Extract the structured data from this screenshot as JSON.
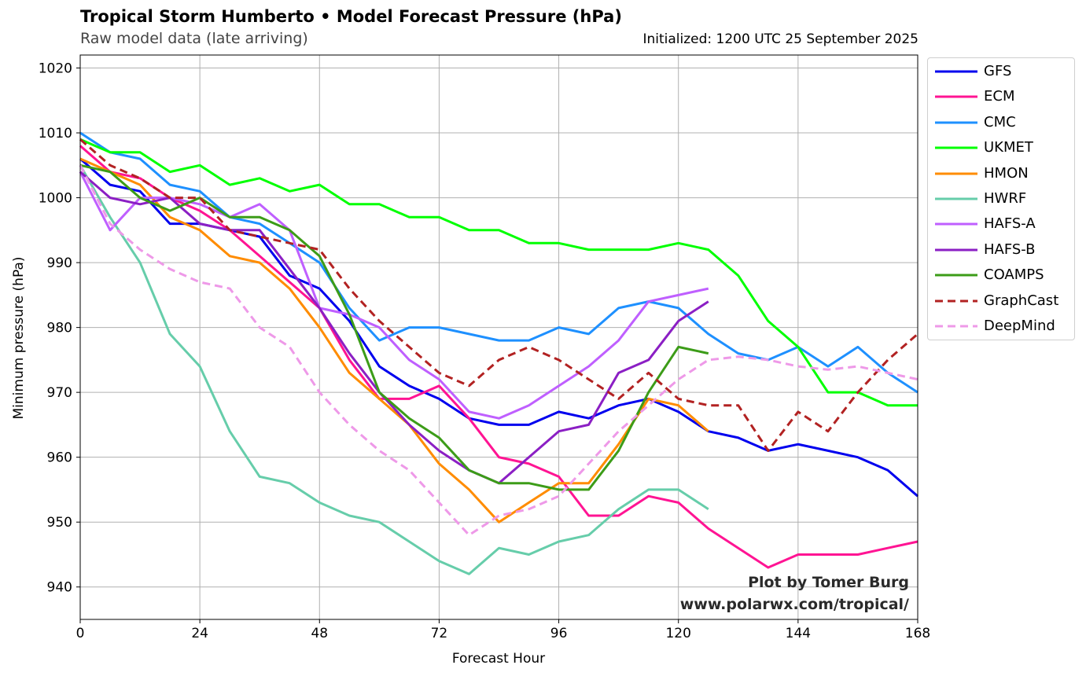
{
  "header": {
    "title": "Tropical Storm Humberto • Model Forecast Pressure (hPa)",
    "subtitle": "Raw model data (late arriving)",
    "initialized": "Initialized: 1200 UTC 25 September 2025"
  },
  "credit": {
    "line1": "Plot by Tomer Burg",
    "line2": "www.polarwx.com/tropical/"
  },
  "chart_data": {
    "type": "line",
    "title": "Tropical Storm Humberto • Model Forecast Pressure (hPa)",
    "xlabel": "Forecast Hour",
    "ylabel": "Minimum pressure (hPa)",
    "xlim": [
      0,
      168
    ],
    "ylim": [
      935,
      1022
    ],
    "xticks": [
      0,
      24,
      48,
      72,
      96,
      120,
      144,
      168
    ],
    "yticks": [
      940,
      950,
      960,
      970,
      980,
      990,
      1000,
      1010,
      1020
    ],
    "grid": true,
    "legend": "outside-right",
    "series": [
      {
        "name": "GFS",
        "color": "#0000ee",
        "dash": false,
        "x": [
          0,
          6,
          12,
          18,
          24,
          30,
          36,
          42,
          48,
          54,
          60,
          66,
          72,
          78,
          84,
          90,
          96,
          102,
          108,
          114,
          120,
          126,
          132,
          138,
          144,
          150,
          156,
          162,
          168
        ],
        "y": [
          1006,
          1002,
          1001,
          996,
          996,
          995,
          994,
          988,
          986,
          981,
          974,
          971,
          969,
          966,
          965,
          965,
          967,
          966,
          968,
          969,
          967,
          964,
          963,
          961,
          962,
          961,
          960,
          958,
          954
        ]
      },
      {
        "name": "ECM",
        "color": "#ff1493",
        "dash": false,
        "x": [
          0,
          6,
          12,
          18,
          24,
          30,
          36,
          42,
          48,
          54,
          60,
          66,
          72,
          78,
          84,
          90,
          96,
          102,
          108,
          114,
          120,
          126,
          132,
          138,
          144,
          150,
          156,
          162,
          168
        ],
        "y": [
          1008,
          1004,
          1003,
          1000,
          998,
          995,
          991,
          987,
          983,
          975,
          969,
          969,
          971,
          966,
          960,
          959,
          957,
          951,
          951,
          954,
          953,
          949,
          946,
          943,
          945,
          945,
          945,
          946,
          947
        ]
      },
      {
        "name": "CMC",
        "color": "#1e90ff",
        "dash": false,
        "x": [
          0,
          6,
          12,
          18,
          24,
          30,
          36,
          42,
          48,
          54,
          60,
          66,
          72,
          78,
          84,
          90,
          96,
          102,
          108,
          114,
          120,
          126,
          132,
          138,
          144,
          150,
          156,
          162,
          168
        ],
        "y": [
          1010,
          1007,
          1006,
          1002,
          1001,
          997,
          996,
          993,
          990,
          983,
          978,
          980,
          980,
          979,
          978,
          978,
          980,
          979,
          983,
          984,
          983,
          979,
          976,
          975,
          977,
          974,
          977,
          973,
          970
        ]
      },
      {
        "name": "UKMET",
        "color": "#00ff00",
        "dash": false,
        "x": [
          0,
          6,
          12,
          18,
          24,
          30,
          36,
          42,
          48,
          54,
          60,
          66,
          72,
          78,
          84,
          90,
          96,
          102,
          108,
          114,
          120,
          126,
          132,
          138,
          144,
          150,
          156,
          162,
          168
        ],
        "y": [
          1009,
          1007,
          1007,
          1004,
          1005,
          1002,
          1003,
          1001,
          1002,
          999,
          999,
          997,
          997,
          995,
          995,
          993,
          993,
          992,
          992,
          992,
          993,
          992,
          988,
          981,
          977,
          970,
          970,
          968,
          968
        ]
      },
      {
        "name": "HMON",
        "color": "#ff8c00",
        "dash": false,
        "x": [
          0,
          6,
          12,
          18,
          24,
          30,
          36,
          42,
          48,
          54,
          60,
          66,
          72,
          78,
          84,
          90,
          96,
          102,
          108,
          114,
          120,
          126
        ],
        "y": [
          1006,
          1004,
          1002,
          997,
          995,
          991,
          990,
          986,
          980,
          973,
          969,
          965,
          959,
          955,
          950,
          953,
          956,
          956,
          962,
          969,
          968,
          964
        ]
      },
      {
        "name": "HWRF",
        "color": "#66cdaa",
        "dash": false,
        "x": [
          0,
          6,
          12,
          18,
          24,
          30,
          36,
          42,
          48,
          54,
          60,
          66,
          72,
          78,
          84,
          90,
          96,
          102,
          108,
          114,
          120,
          126
        ],
        "y": [
          1005,
          997,
          990,
          979,
          974,
          964,
          957,
          956,
          953,
          951,
          950,
          947,
          944,
          942,
          946,
          945,
          947,
          948,
          952,
          955,
          955,
          952
        ]
      },
      {
        "name": "HAFS-A",
        "color": "#bf5fff",
        "dash": false,
        "x": [
          0,
          6,
          12,
          18,
          24,
          30,
          36,
          42,
          48,
          54,
          60,
          66,
          72,
          78,
          84,
          90,
          96,
          102,
          108,
          114,
          120,
          126
        ],
        "y": [
          1004,
          995,
          1000,
          1000,
          999,
          997,
          999,
          995,
          983,
          982,
          980,
          975,
          972,
          967,
          966,
          968,
          971,
          974,
          978,
          984,
          985,
          986
        ]
      },
      {
        "name": "HAFS-B",
        "color": "#8b1fc4",
        "dash": false,
        "x": [
          0,
          6,
          12,
          18,
          24,
          30,
          36,
          42,
          48,
          54,
          60,
          66,
          72,
          78,
          84,
          90,
          96,
          102,
          108,
          114,
          120,
          126
        ],
        "y": [
          1004,
          1000,
          999,
          1000,
          996,
          995,
          995,
          989,
          983,
          976,
          970,
          965,
          961,
          958,
          956,
          960,
          964,
          965,
          973,
          975,
          981,
          984
        ]
      },
      {
        "name": "COAMPS",
        "color": "#3c9c18",
        "dash": false,
        "x": [
          0,
          6,
          12,
          18,
          24,
          30,
          36,
          42,
          48,
          54,
          60,
          66,
          72,
          78,
          84,
          90,
          96,
          102,
          108,
          114,
          120,
          126
        ],
        "y": [
          1005,
          1004,
          1000,
          998,
          1000,
          997,
          997,
          995,
          991,
          982,
          970,
          966,
          963,
          958,
          956,
          956,
          955,
          955,
          961,
          970,
          977,
          976
        ]
      },
      {
        "name": "GraphCast",
        "color": "#b22222",
        "dash": true,
        "x": [
          0,
          6,
          12,
          18,
          24,
          30,
          36,
          42,
          48,
          54,
          60,
          66,
          72,
          78,
          84,
          90,
          96,
          102,
          108,
          114,
          120,
          126,
          132,
          138,
          144,
          150,
          156,
          162,
          168
        ],
        "y": [
          1009,
          1005,
          1003,
          1000,
          1000,
          995,
          994,
          993,
          992,
          986,
          981,
          977,
          973,
          971,
          975,
          977,
          975,
          972,
          969,
          973,
          969,
          968,
          968,
          961,
          967,
          964,
          970,
          975,
          979
        ]
      },
      {
        "name": "DeepMind",
        "color": "#ee99e8",
        "dash": true,
        "x": [
          0,
          6,
          12,
          18,
          24,
          30,
          36,
          42,
          48,
          54,
          60,
          66,
          72,
          78,
          84,
          90,
          96,
          102,
          108,
          114,
          120,
          126,
          132,
          138,
          144,
          150,
          156,
          162,
          168
        ],
        "y": [
          1005,
          996,
          992,
          989,
          987,
          986,
          980,
          977,
          970,
          965,
          961,
          958,
          953,
          948,
          951,
          952,
          954,
          959,
          964,
          968,
          972,
          975,
          975.5,
          975,
          974,
          973.5,
          974,
          973,
          972
        ]
      }
    ]
  }
}
